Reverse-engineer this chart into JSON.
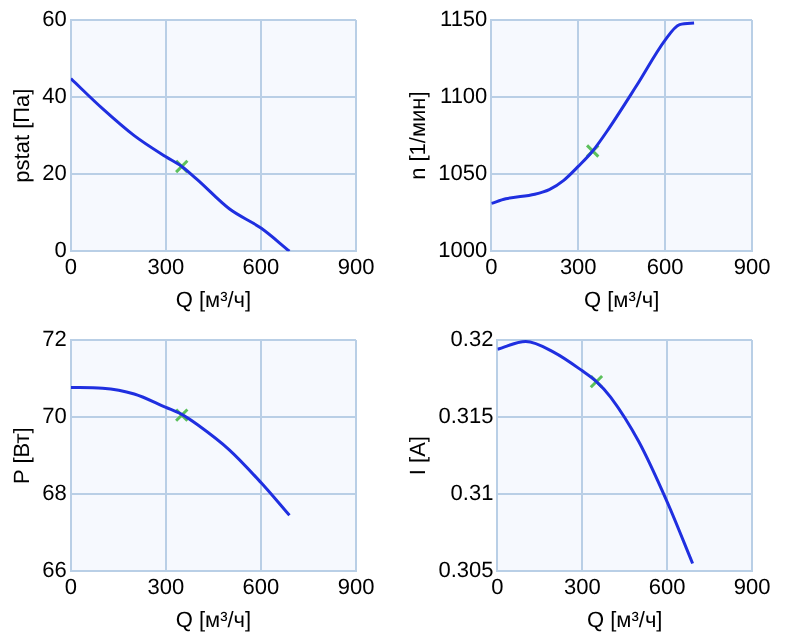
{
  "chart_data": [
    {
      "type": "line",
      "xlabel": "Q [м³/ч]",
      "ylabel": "pstat [Па]",
      "xlim": [
        0,
        900
      ],
      "xticks": [
        0,
        300,
        600,
        900
      ],
      "ylim": [
        0,
        60
      ],
      "yticks": [
        0,
        20,
        40,
        60
      ],
      "grid": true,
      "legend": false,
      "series": [
        {
          "color": "#1f2fe0",
          "marker": "none",
          "x": [
            0,
            100,
            200,
            300,
            350,
            400,
            500,
            600,
            690
          ],
          "values": [
            44.8,
            37,
            30,
            24.5,
            22,
            18.5,
            11,
            6,
            0
          ]
        },
        {
          "type": "scatter",
          "color": "#5cc05c",
          "marker": "cross",
          "x": [
            350
          ],
          "values": [
            22
          ]
        }
      ]
    },
    {
      "type": "line",
      "xlabel": "Q [м³/ч]",
      "ylabel": "n [1/мин]",
      "xlim": [
        0,
        900
      ],
      "xticks": [
        0,
        300,
        600,
        900
      ],
      "ylim": [
        1000,
        1150
      ],
      "yticks": [
        1000,
        1050,
        1100,
        1150
      ],
      "grid": true,
      "legend": false,
      "series": [
        {
          "color": "#1f2fe0",
          "marker": "none",
          "x": [
            0,
            50,
            150,
            200,
            250,
            300,
            350,
            400,
            500,
            600,
            650,
            700
          ],
          "values": [
            1031,
            1034,
            1037,
            1040,
            1046,
            1055,
            1065,
            1078,
            1107,
            1137,
            1147,
            1148
          ]
        },
        {
          "type": "scatter",
          "color": "#5cc05c",
          "marker": "cross",
          "x": [
            350
          ],
          "values": [
            1065
          ]
        }
      ]
    },
    {
      "type": "line",
      "xlabel": "Q [м³/ч]",
      "ylabel": "P [Вт]",
      "xlim": [
        0,
        900
      ],
      "xticks": [
        0,
        300,
        600,
        900
      ],
      "ylim": [
        66,
        72
      ],
      "yticks": [
        66,
        68,
        70,
        72
      ],
      "grid": true,
      "legend": false,
      "series": [
        {
          "color": "#1f2fe0",
          "marker": "none",
          "x": [
            0,
            100,
            200,
            300,
            350,
            400,
            500,
            600,
            690
          ],
          "values": [
            70.77,
            70.75,
            70.6,
            70.25,
            70.07,
            69.8,
            69.15,
            68.3,
            67.45
          ]
        },
        {
          "type": "scatter",
          "color": "#5cc05c",
          "marker": "cross",
          "x": [
            350
          ],
          "values": [
            70.05
          ]
        }
      ]
    },
    {
      "type": "line",
      "xlabel": "Q [м³/ч]",
      "ylabel": "I [A]",
      "xlim": [
        0,
        900
      ],
      "xticks": [
        0,
        300,
        600,
        900
      ],
      "ylim": [
        0.305,
        0.32
      ],
      "yticks": [
        0.305,
        0.31,
        0.315,
        0.32
      ],
      "grid": true,
      "legend": false,
      "series": [
        {
          "color": "#1f2fe0",
          "marker": "none",
          "x": [
            0,
            100,
            200,
            300,
            350,
            400,
            500,
            600,
            690
          ],
          "values": [
            0.3194,
            0.3199,
            0.3192,
            0.318,
            0.3173,
            0.3163,
            0.3134,
            0.3095,
            0.3055
          ]
        },
        {
          "type": "scatter",
          "color": "#5cc05c",
          "marker": "cross",
          "x": [
            350
          ],
          "values": [
            0.3173
          ]
        }
      ]
    }
  ]
}
